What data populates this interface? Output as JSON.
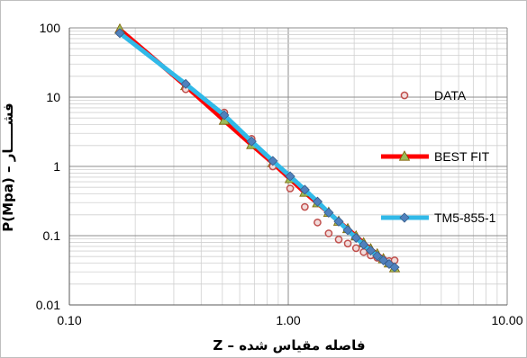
{
  "chart_data": {
    "type": "scatter",
    "title": "",
    "xlabel": "فاصله مقیاس شده – Z",
    "ylabel": "P(Mpa) – فشـــــار",
    "x_scale": "log",
    "y_scale": "log",
    "xlim": [
      0.1,
      10
    ],
    "ylim": [
      0.01,
      100
    ],
    "x_ticks": [
      "0.10",
      "1.00",
      "10.00"
    ],
    "y_ticks": [
      "0.01",
      "0.1",
      "1",
      "10",
      "100"
    ],
    "grid": true,
    "legend_position": "right",
    "series": [
      {
        "name": "DATA",
        "marker": "circle",
        "color": "#c0504d",
        "fill": "#f2dcdb",
        "x": [
          0.17,
          0.34,
          0.51,
          0.68,
          0.85,
          1.02,
          1.19,
          1.36,
          1.53,
          1.7,
          1.87,
          2.04,
          2.21,
          2.38,
          2.55,
          2.72,
          2.89,
          3.06
        ],
        "y": [
          85,
          13,
          6.0,
          2.5,
          1.0,
          0.48,
          0.26,
          0.155,
          0.108,
          0.088,
          0.077,
          0.066,
          0.058,
          0.052,
          0.048,
          0.045,
          0.043,
          0.044
        ]
      },
      {
        "name": "BEST FIT",
        "marker": "triangle",
        "color": "#ff0000",
        "marker_color": "#9bbb59",
        "x": [
          0.17,
          0.34,
          0.51,
          0.68,
          0.85,
          1.02,
          1.19,
          1.36,
          1.53,
          1.7,
          1.87,
          2.04,
          2.21,
          2.38,
          2.55,
          2.72,
          2.89,
          3.06
        ],
        "y": [
          95,
          14.5,
          4.6,
          2.05,
          1.12,
          0.66,
          0.42,
          0.295,
          0.215,
          0.16,
          0.125,
          0.098,
          0.078,
          0.064,
          0.054,
          0.046,
          0.04,
          0.034
        ]
      },
      {
        "name": "TM5-855-1",
        "marker": "diamond",
        "color": "#31b9e8",
        "marker_color": "#4f81bd",
        "x": [
          0.17,
          0.34,
          0.51,
          0.68,
          0.85,
          1.02,
          1.19,
          1.36,
          1.53,
          1.7,
          1.87,
          2.04,
          2.21,
          2.38,
          2.55,
          2.72,
          2.89,
          3.06
        ],
        "y": [
          84,
          15.5,
          5.5,
          2.3,
          1.2,
          0.72,
          0.46,
          0.31,
          0.215,
          0.16,
          0.12,
          0.093,
          0.074,
          0.061,
          0.051,
          0.044,
          0.039,
          0.035
        ]
      }
    ]
  }
}
